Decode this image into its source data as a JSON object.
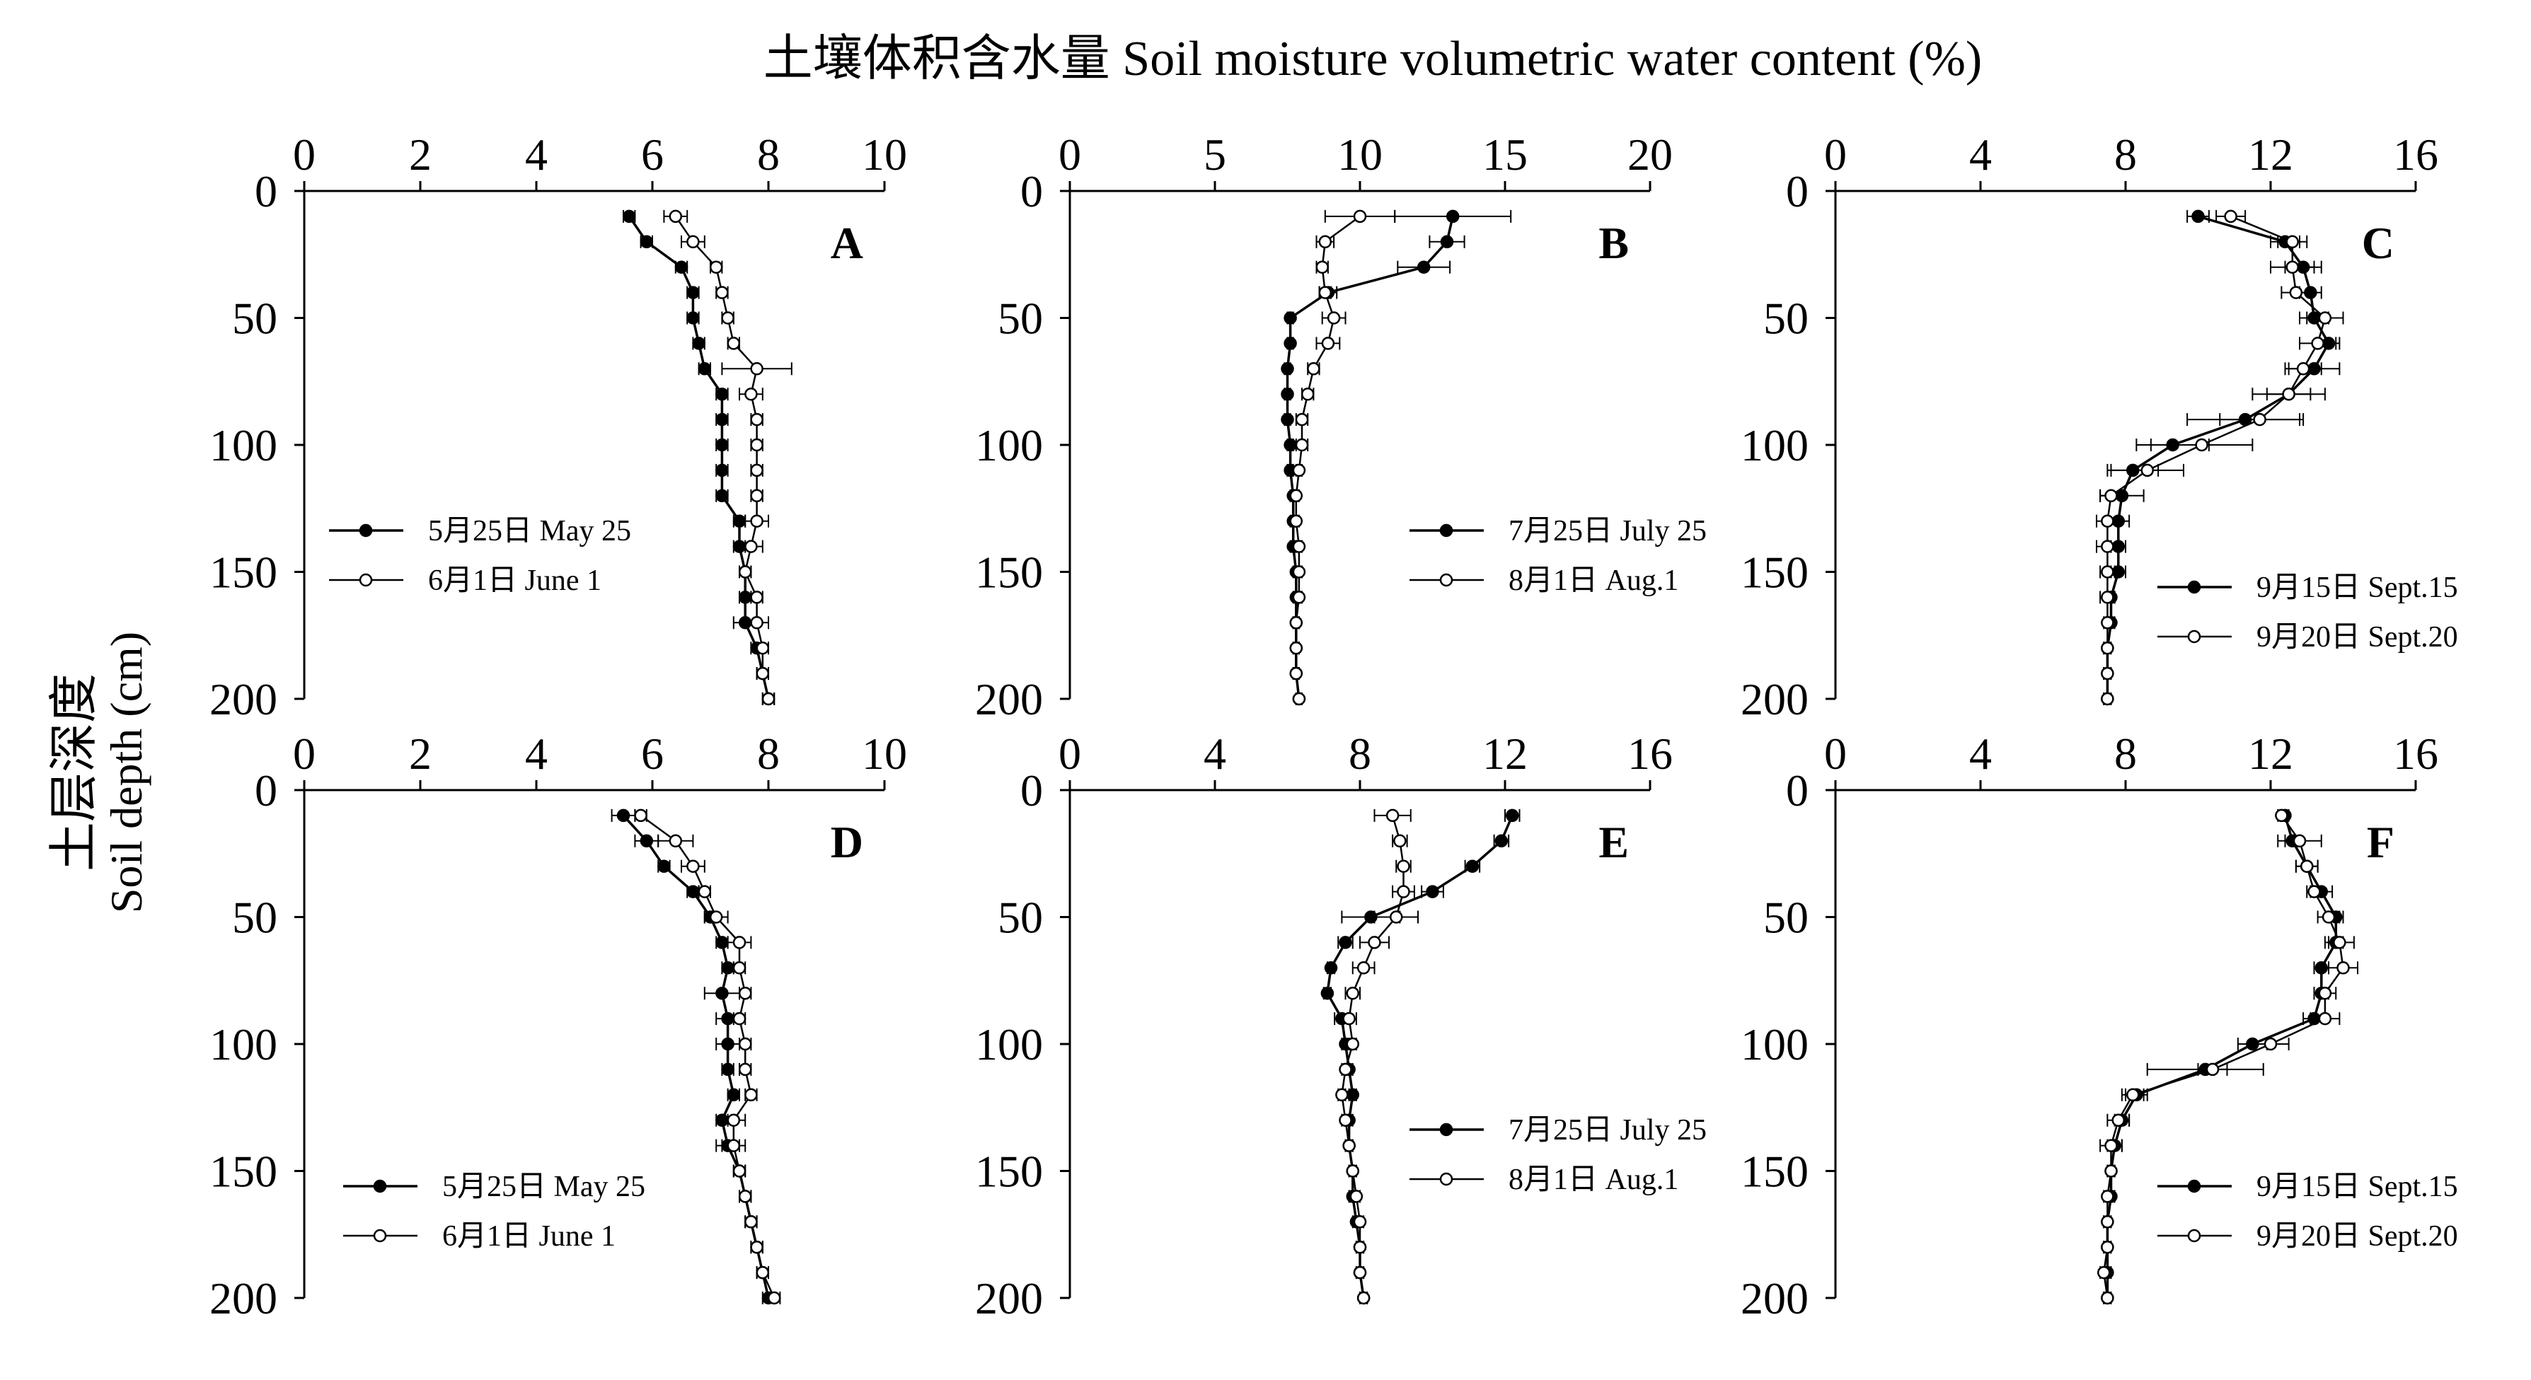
{
  "title": "土壤体积含水量 Soil moisture volumetric water content (%)",
  "ylabel_cn": "土层深度",
  "ylabel_en": "Soil depth (cm)",
  "colors": {
    "line": "#000000",
    "open_marker_fill": "#ffffff",
    "background": "#ffffff"
  },
  "chart_data": [
    {
      "type": "line",
      "panel": "A",
      "xlim": [
        0,
        10
      ],
      "ylim": [
        0,
        200
      ],
      "y_inverted": true,
      "xticks": [
        "0",
        "2",
        "4",
        "6",
        "8",
        "10"
      ],
      "yticks": [
        "0",
        "50",
        "100",
        "150",
        "200"
      ],
      "legend": {
        "placement": "center-left",
        "entries": [
          "5月25日 May 25",
          "6月1日 June 1"
        ]
      },
      "series": [
        {
          "name": "5月25日 May 25",
          "marker": "filled",
          "depth": [
            10,
            20,
            30,
            40,
            50,
            60,
            70,
            80,
            90,
            100,
            110,
            120,
            130,
            140,
            150,
            160,
            170,
            180,
            190,
            200
          ],
          "values": [
            5.6,
            5.9,
            6.5,
            6.7,
            6.7,
            6.8,
            6.9,
            7.2,
            7.2,
            7.2,
            7.2,
            7.2,
            7.5,
            7.5,
            7.6,
            7.6,
            7.6,
            7.8,
            7.9,
            8.0
          ],
          "error": [
            0.1,
            0.1,
            0.1,
            0.1,
            0.1,
            0.1,
            0.1,
            0.1,
            0.1,
            0.1,
            0.1,
            0.1,
            0.1,
            0.1,
            0.1,
            0.1,
            0.2,
            0.1,
            0.1,
            0.1
          ]
        },
        {
          "name": "6月1日 June 1",
          "marker": "open",
          "depth": [
            10,
            20,
            30,
            40,
            50,
            60,
            70,
            80,
            90,
            100,
            110,
            120,
            130,
            140,
            150,
            160,
            170,
            180,
            190,
            200
          ],
          "values": [
            6.4,
            6.7,
            7.1,
            7.2,
            7.3,
            7.4,
            7.8,
            7.7,
            7.8,
            7.8,
            7.8,
            7.8,
            7.8,
            7.7,
            7.6,
            7.8,
            7.8,
            7.9,
            7.9,
            8.0
          ],
          "error": [
            0.2,
            0.2,
            0.1,
            0.1,
            0.1,
            0.1,
            0.6,
            0.2,
            0.1,
            0.1,
            0.1,
            0.1,
            0.2,
            0.2,
            0.1,
            0.1,
            0.2,
            0.1,
            0.1,
            0.1
          ]
        }
      ]
    },
    {
      "type": "line",
      "panel": "B",
      "xlim": [
        0,
        20
      ],
      "ylim": [
        0,
        200
      ],
      "y_inverted": true,
      "xticks": [
        "0",
        "5",
        "10",
        "15",
        "20"
      ],
      "yticks": [
        "0",
        "50",
        "100",
        "150",
        "200"
      ],
      "legend": {
        "placement": "center-right",
        "entries": [
          "7月25日 July 25",
          "8月1日 Aug.1"
        ]
      },
      "series": [
        {
          "name": "7月25日 July 25",
          "marker": "filled",
          "depth": [
            10,
            20,
            30,
            40,
            50,
            60,
            70,
            80,
            90,
            100,
            110,
            120,
            130,
            140,
            150,
            160,
            170,
            180,
            190,
            200
          ],
          "values": [
            13.2,
            13.0,
            12.2,
            8.9,
            7.6,
            7.6,
            7.5,
            7.5,
            7.5,
            7.6,
            7.6,
            7.7,
            7.7,
            7.7,
            7.8,
            7.8,
            7.8,
            7.8,
            7.8,
            7.9
          ],
          "error": [
            2.0,
            0.6,
            0.9,
            0.3,
            0.1,
            0.1,
            0.1,
            0.1,
            0.1,
            0.1,
            0.1,
            0.1,
            0.1,
            0.1,
            0.1,
            0.1,
            0.1,
            0.1,
            0.1,
            0.1
          ]
        },
        {
          "name": "8月1日 Aug.1",
          "marker": "open",
          "depth": [
            10,
            20,
            30,
            40,
            50,
            60,
            70,
            80,
            90,
            100,
            110,
            120,
            130,
            140,
            150,
            160,
            170,
            180,
            190,
            200
          ],
          "values": [
            10.0,
            8.8,
            8.7,
            8.8,
            9.1,
            8.9,
            8.4,
            8.2,
            8.0,
            8.0,
            7.9,
            7.8,
            7.8,
            7.9,
            7.9,
            7.9,
            7.8,
            7.8,
            7.8,
            7.9
          ],
          "error": [
            1.2,
            0.3,
            0.2,
            0.2,
            0.4,
            0.4,
            0.2,
            0.2,
            0.2,
            0.2,
            0.1,
            0.1,
            0.1,
            0.1,
            0.1,
            0.1,
            0.1,
            0.1,
            0.1,
            0.1
          ]
        }
      ]
    },
    {
      "type": "line",
      "panel": "C",
      "xlim": [
        0,
        16
      ],
      "ylim": [
        0,
        200
      ],
      "y_inverted": true,
      "xticks": [
        "0",
        "4",
        "8",
        "12",
        "16"
      ],
      "yticks": [
        "0",
        "50",
        "100",
        "150",
        "200"
      ],
      "legend": {
        "placement": "lower-right",
        "entries": [
          "9月15日 Sept.15",
          "9月20日 Sept.20"
        ]
      },
      "series": [
        {
          "name": "9月15日 Sept.15",
          "marker": "filled",
          "depth": [
            10,
            20,
            30,
            40,
            50,
            60,
            70,
            80,
            90,
            100,
            110,
            120,
            130,
            140,
            150,
            160,
            170,
            180,
            190,
            200
          ],
          "values": [
            10.0,
            12.4,
            12.9,
            13.1,
            13.2,
            13.6,
            13.2,
            12.5,
            11.3,
            9.3,
            8.2,
            7.9,
            7.8,
            7.8,
            7.8,
            7.6,
            7.6,
            7.5,
            7.5,
            7.5
          ],
          "error": [
            0.3,
            0.4,
            0.5,
            0.3,
            0.4,
            0.3,
            0.7,
            1.0,
            1.6,
            1.0,
            0.7,
            0.6,
            0.3,
            0.2,
            0.2,
            0.1,
            0.1,
            0.1,
            0.1,
            0.1
          ]
        },
        {
          "name": "9月20日 Sept.20",
          "marker": "open",
          "depth": [
            10,
            20,
            30,
            40,
            50,
            60,
            70,
            80,
            90,
            100,
            110,
            120,
            130,
            140,
            150,
            160,
            170,
            180,
            190,
            200
          ],
          "values": [
            10.9,
            12.6,
            12.6,
            12.7,
            13.5,
            13.3,
            12.9,
            12.5,
            11.7,
            10.1,
            8.6,
            7.6,
            7.5,
            7.5,
            7.5,
            7.5,
            7.5,
            7.5,
            7.5,
            7.5
          ],
          "error": [
            0.4,
            0.4,
            0.6,
            0.4,
            0.5,
            0.5,
            0.5,
            0.6,
            1.1,
            1.4,
            1.0,
            0.3,
            0.3,
            0.3,
            0.2,
            0.2,
            0.1,
            0.1,
            0.1,
            0.1
          ]
        }
      ]
    },
    {
      "type": "line",
      "panel": "D",
      "xlim": [
        0,
        10
      ],
      "ylim": [
        0,
        200
      ],
      "y_inverted": true,
      "xticks": [
        "0",
        "2",
        "4",
        "6",
        "8",
        "10"
      ],
      "yticks": [
        "0",
        "50",
        "100",
        "150",
        "200"
      ],
      "legend": {
        "placement": "lower-left",
        "entries": [
          "5月25日 May 25",
          "6月1日 June 1"
        ]
      },
      "series": [
        {
          "name": "5月25日 May 25",
          "marker": "filled",
          "depth": [
            10,
            20,
            30,
            40,
            50,
            60,
            70,
            80,
            90,
            100,
            110,
            120,
            130,
            140,
            150,
            160,
            170,
            180,
            190,
            200
          ],
          "values": [
            5.5,
            5.9,
            6.2,
            6.7,
            7.0,
            7.2,
            7.3,
            7.2,
            7.3,
            7.3,
            7.3,
            7.4,
            7.2,
            7.3,
            7.5,
            7.6,
            7.7,
            7.8,
            7.9,
            8.0
          ],
          "error": [
            0.2,
            0.2,
            0.1,
            0.1,
            0.1,
            0.1,
            0.1,
            0.3,
            0.2,
            0.2,
            0.1,
            0.1,
            0.1,
            0.2,
            0.1,
            0.1,
            0.1,
            0.1,
            0.1,
            0.1
          ]
        },
        {
          "name": "6月1日 June 1",
          "marker": "open",
          "depth": [
            10,
            20,
            30,
            40,
            50,
            60,
            70,
            80,
            90,
            100,
            110,
            120,
            130,
            140,
            150,
            160,
            170,
            180,
            190,
            200
          ],
          "values": [
            5.8,
            6.4,
            6.7,
            6.9,
            7.1,
            7.5,
            7.5,
            7.6,
            7.5,
            7.6,
            7.6,
            7.7,
            7.4,
            7.4,
            7.5,
            7.6,
            7.7,
            7.8,
            7.9,
            8.1
          ],
          "error": [
            0.1,
            0.3,
            0.2,
            0.1,
            0.2,
            0.2,
            0.1,
            0.1,
            0.1,
            0.1,
            0.1,
            0.1,
            0.2,
            0.2,
            0.1,
            0.1,
            0.1,
            0.1,
            0.1,
            0.1
          ]
        }
      ]
    },
    {
      "type": "line",
      "panel": "E",
      "xlim": [
        0,
        16
      ],
      "ylim": [
        0,
        200
      ],
      "y_inverted": true,
      "xticks": [
        "0",
        "4",
        "8",
        "12",
        "16"
      ],
      "yticks": [
        "0",
        "50",
        "100",
        "150",
        "200"
      ],
      "legend": {
        "placement": "center-right",
        "entries": [
          "7月25日 July 25",
          "8月1日 Aug.1"
        ]
      },
      "series": [
        {
          "name": "7月25日 July 25",
          "marker": "filled",
          "depth": [
            10,
            20,
            30,
            40,
            50,
            60,
            70,
            80,
            90,
            100,
            110,
            120,
            130,
            140,
            150,
            160,
            170,
            180,
            190,
            200
          ],
          "values": [
            12.2,
            11.9,
            11.1,
            10.0,
            8.3,
            7.6,
            7.2,
            7.1,
            7.5,
            7.6,
            7.7,
            7.8,
            7.7,
            7.7,
            7.8,
            7.8,
            7.9,
            8.0,
            8.0,
            8.1
          ],
          "error": [
            0.2,
            0.2,
            0.2,
            0.3,
            0.8,
            0.2,
            0.1,
            0.1,
            0.2,
            0.1,
            0.1,
            0.1,
            0.1,
            0.1,
            0.1,
            0.1,
            0.1,
            0.1,
            0.1,
            0.1
          ]
        },
        {
          "name": "8月1日 Aug.1",
          "marker": "open",
          "depth": [
            10,
            20,
            30,
            40,
            50,
            60,
            70,
            80,
            90,
            100,
            110,
            120,
            130,
            140,
            150,
            160,
            170,
            180,
            190,
            200
          ],
          "values": [
            8.9,
            9.1,
            9.2,
            9.2,
            9.0,
            8.4,
            8.1,
            7.8,
            7.7,
            7.8,
            7.6,
            7.5,
            7.6,
            7.7,
            7.8,
            7.9,
            8.0,
            8.0,
            8.0,
            8.1
          ],
          "error": [
            0.5,
            0.2,
            0.2,
            0.3,
            0.6,
            0.4,
            0.3,
            0.2,
            0.2,
            0.1,
            0.1,
            0.1,
            0.1,
            0.1,
            0.1,
            0.1,
            0.1,
            0.1,
            0.1,
            0.1
          ]
        }
      ]
    },
    {
      "type": "line",
      "panel": "F",
      "xlim": [
        0,
        16
      ],
      "ylim": [
        0,
        200
      ],
      "y_inverted": true,
      "xticks": [
        "0",
        "4",
        "8",
        "12",
        "16"
      ],
      "yticks": [
        "0",
        "50",
        "100",
        "150",
        "200"
      ],
      "legend": {
        "placement": "lower-right",
        "entries": [
          "9月15日 Sept.15",
          "9月20日 Sept.20"
        ]
      },
      "series": [
        {
          "name": "9月15日 Sept.15",
          "marker": "filled",
          "depth": [
            10,
            20,
            30,
            40,
            50,
            60,
            70,
            80,
            90,
            100,
            110,
            120,
            130,
            140,
            150,
            160,
            170,
            180,
            190,
            200
          ],
          "values": [
            12.4,
            12.6,
            13.0,
            13.4,
            13.8,
            13.8,
            13.4,
            13.4,
            13.2,
            11.5,
            10.2,
            8.3,
            7.9,
            7.7,
            7.6,
            7.6,
            7.5,
            7.5,
            7.5,
            7.5
          ],
          "error": [
            0.1,
            0.2,
            0.3,
            0.3,
            0.2,
            0.2,
            0.2,
            0.2,
            0.3,
            0.4,
            1.6,
            0.3,
            0.2,
            0.2,
            0.1,
            0.1,
            0.1,
            0.1,
            0.1,
            0.1
          ]
        },
        {
          "name": "9月20日 Sept.20",
          "marker": "open",
          "depth": [
            10,
            20,
            30,
            40,
            50,
            60,
            70,
            80,
            90,
            100,
            110,
            120,
            130,
            140,
            150,
            160,
            170,
            180,
            190,
            200
          ],
          "values": [
            12.3,
            12.8,
            13.0,
            13.2,
            13.6,
            13.9,
            14.0,
            13.5,
            13.5,
            12.0,
            10.4,
            8.2,
            7.8,
            7.6,
            7.6,
            7.5,
            7.5,
            7.5,
            7.4,
            7.5
          ],
          "error": [
            0.1,
            0.6,
            0.3,
            0.2,
            0.3,
            0.4,
            0.4,
            0.3,
            0.4,
            0.5,
            0.4,
            0.3,
            0.3,
            0.3,
            0.1,
            0.1,
            0.1,
            0.1,
            0.1,
            0.1
          ]
        }
      ]
    }
  ]
}
